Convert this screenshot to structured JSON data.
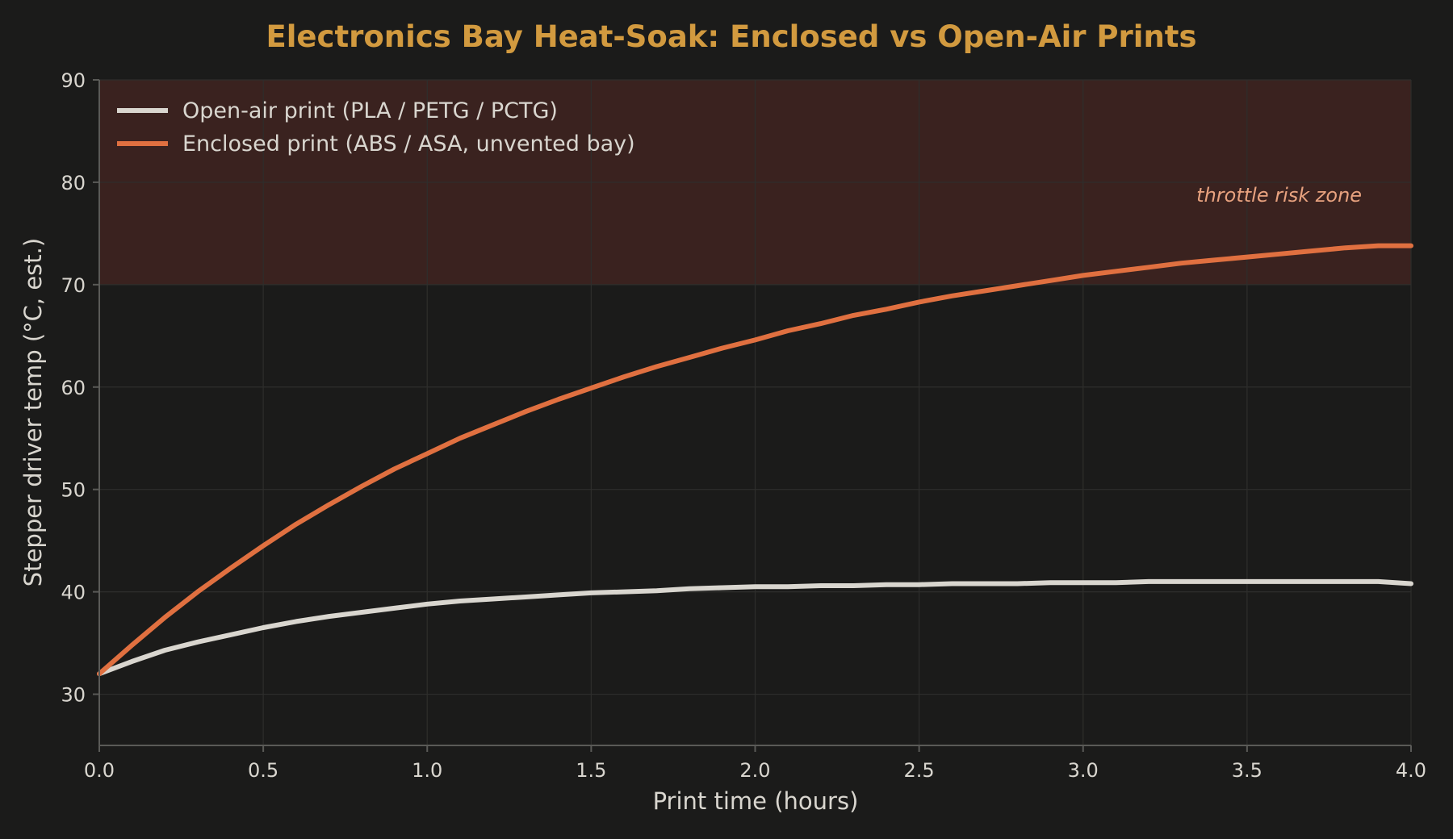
{
  "colors": {
    "background": "#1b1b1a",
    "title": "#d29a3f",
    "text": "#d9d6cf",
    "grid": "#2e2e2c",
    "axis": "#5a5a57",
    "zone_fill": "#3a221f",
    "zone_text": "#e8a27f"
  },
  "chart_data": {
    "type": "line",
    "title": "Electronics Bay Heat-Soak: Enclosed vs Open-Air Prints",
    "xlabel": "Print time (hours)",
    "ylabel": "Stepper driver temp (°C, est.)",
    "xlim": [
      0,
      4
    ],
    "ylim": [
      25,
      90
    ],
    "xticks": [
      0,
      0.5,
      1,
      1.5,
      2,
      2.5,
      3,
      3.5,
      4
    ],
    "xtick_labels": [
      "0.0",
      "0.5",
      "1.0",
      "1.5",
      "2.0",
      "2.5",
      "3.0",
      "3.5",
      "4.0"
    ],
    "yticks": [
      30,
      40,
      50,
      60,
      70,
      80,
      90
    ],
    "ytick_labels": [
      "30",
      "40",
      "50",
      "60",
      "70",
      "80",
      "90"
    ],
    "grid": true,
    "legend_position": "upper-left",
    "shaded_band": {
      "y_from": 70,
      "y_to": 90,
      "label": "throttle risk zone"
    },
    "x": [
      0,
      0.1,
      0.2,
      0.3,
      0.4,
      0.5,
      0.6,
      0.7,
      0.8,
      0.9,
      1.0,
      1.1,
      1.2,
      1.3,
      1.4,
      1.5,
      1.6,
      1.7,
      1.8,
      1.9,
      2.0,
      2.1,
      2.2,
      2.3,
      2.4,
      2.5,
      2.6,
      2.7,
      2.8,
      2.9,
      3.0,
      3.1,
      3.2,
      3.3,
      3.4,
      3.5,
      3.6,
      3.7,
      3.8,
      3.9,
      4.0
    ],
    "series": [
      {
        "name": "Open-air print (PLA / PETG / PCTG)",
        "color": "#d9d6cf",
        "values": [
          32.0,
          33.2,
          34.3,
          35.1,
          35.8,
          36.5,
          37.1,
          37.6,
          38.0,
          38.4,
          38.8,
          39.1,
          39.3,
          39.5,
          39.7,
          39.9,
          40.0,
          40.1,
          40.3,
          40.4,
          40.5,
          40.5,
          40.6,
          40.6,
          40.7,
          40.7,
          40.8,
          40.8,
          40.8,
          40.9,
          40.9,
          40.9,
          41.0,
          41.0,
          41.0,
          41.0,
          41.0,
          41.0,
          41.0,
          41.0,
          40.8
        ]
      },
      {
        "name": "Enclosed print (ABS / ASA, unvented bay)",
        "color": "#e07040",
        "values": [
          32.0,
          34.8,
          37.5,
          40.0,
          42.3,
          44.5,
          46.6,
          48.5,
          50.3,
          52.0,
          53.5,
          55.0,
          56.3,
          57.6,
          58.8,
          59.9,
          61.0,
          62.0,
          62.9,
          63.8,
          64.6,
          65.5,
          66.2,
          67.0,
          67.6,
          68.3,
          68.9,
          69.4,
          69.9,
          70.4,
          70.9,
          71.3,
          71.7,
          72.1,
          72.4,
          72.7,
          73.0,
          73.3,
          73.6,
          73.8,
          73.8
        ]
      }
    ]
  }
}
